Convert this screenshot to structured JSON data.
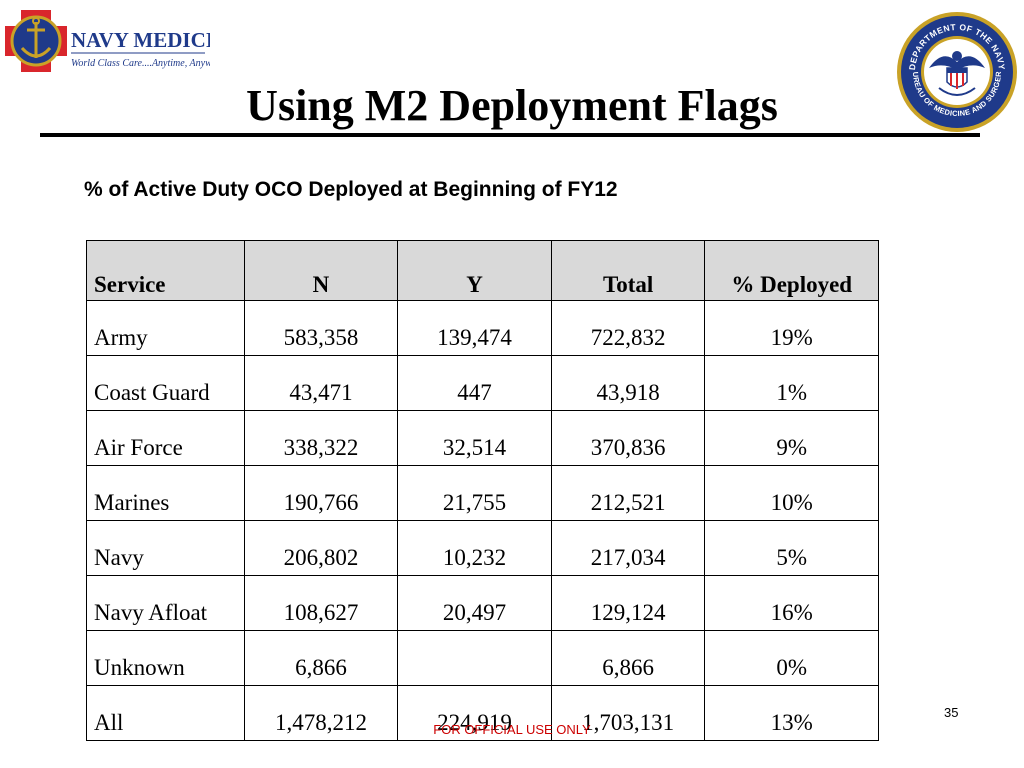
{
  "header": {
    "logo_left": {
      "name": "NAVY MEDICINE",
      "tagline": "World Class Care....Anytime, Anywhere"
    },
    "seal": {
      "top_text": "DEPARTMENT OF THE NAVY",
      "bottom_text": "BUREAU OF MEDICINE AND SURGERY"
    },
    "title": "Using M2 Deployment Flags"
  },
  "subtitle": "% of Active Duty OCO Deployed at Beginning of FY12",
  "table": {
    "headers": [
      "Service",
      "N",
      "Y",
      "Total",
      "% Deployed"
    ],
    "rows": [
      [
        "Army",
        "583,358",
        "139,474",
        "722,832",
        "19%"
      ],
      [
        "Coast Guard",
        "43,471",
        "447",
        "43,918",
        "1%"
      ],
      [
        "Air Force",
        "338,322",
        "32,514",
        "370,836",
        "9%"
      ],
      [
        "Marines",
        "190,766",
        "21,755",
        "212,521",
        "10%"
      ],
      [
        "Navy",
        "206,802",
        "10,232",
        "217,034",
        "5%"
      ],
      [
        "Navy Afloat",
        "108,627",
        "20,497",
        "129,124",
        "16%"
      ],
      [
        "Unknown",
        "6,866",
        "",
        "6,866",
        "0%"
      ],
      [
        "All",
        "1,478,212",
        "224,919",
        "1,703,131",
        "13%"
      ]
    ]
  },
  "footer": {
    "page_number": "35",
    "classification": "FOR OFFICIAL USE ONLY"
  },
  "colors": {
    "navy": "#1f3a8a",
    "red_cross": "#d9262c",
    "gold": "#c9a227",
    "footer_red": "#cc0000",
    "header_fill": "#d9d9d9"
  }
}
